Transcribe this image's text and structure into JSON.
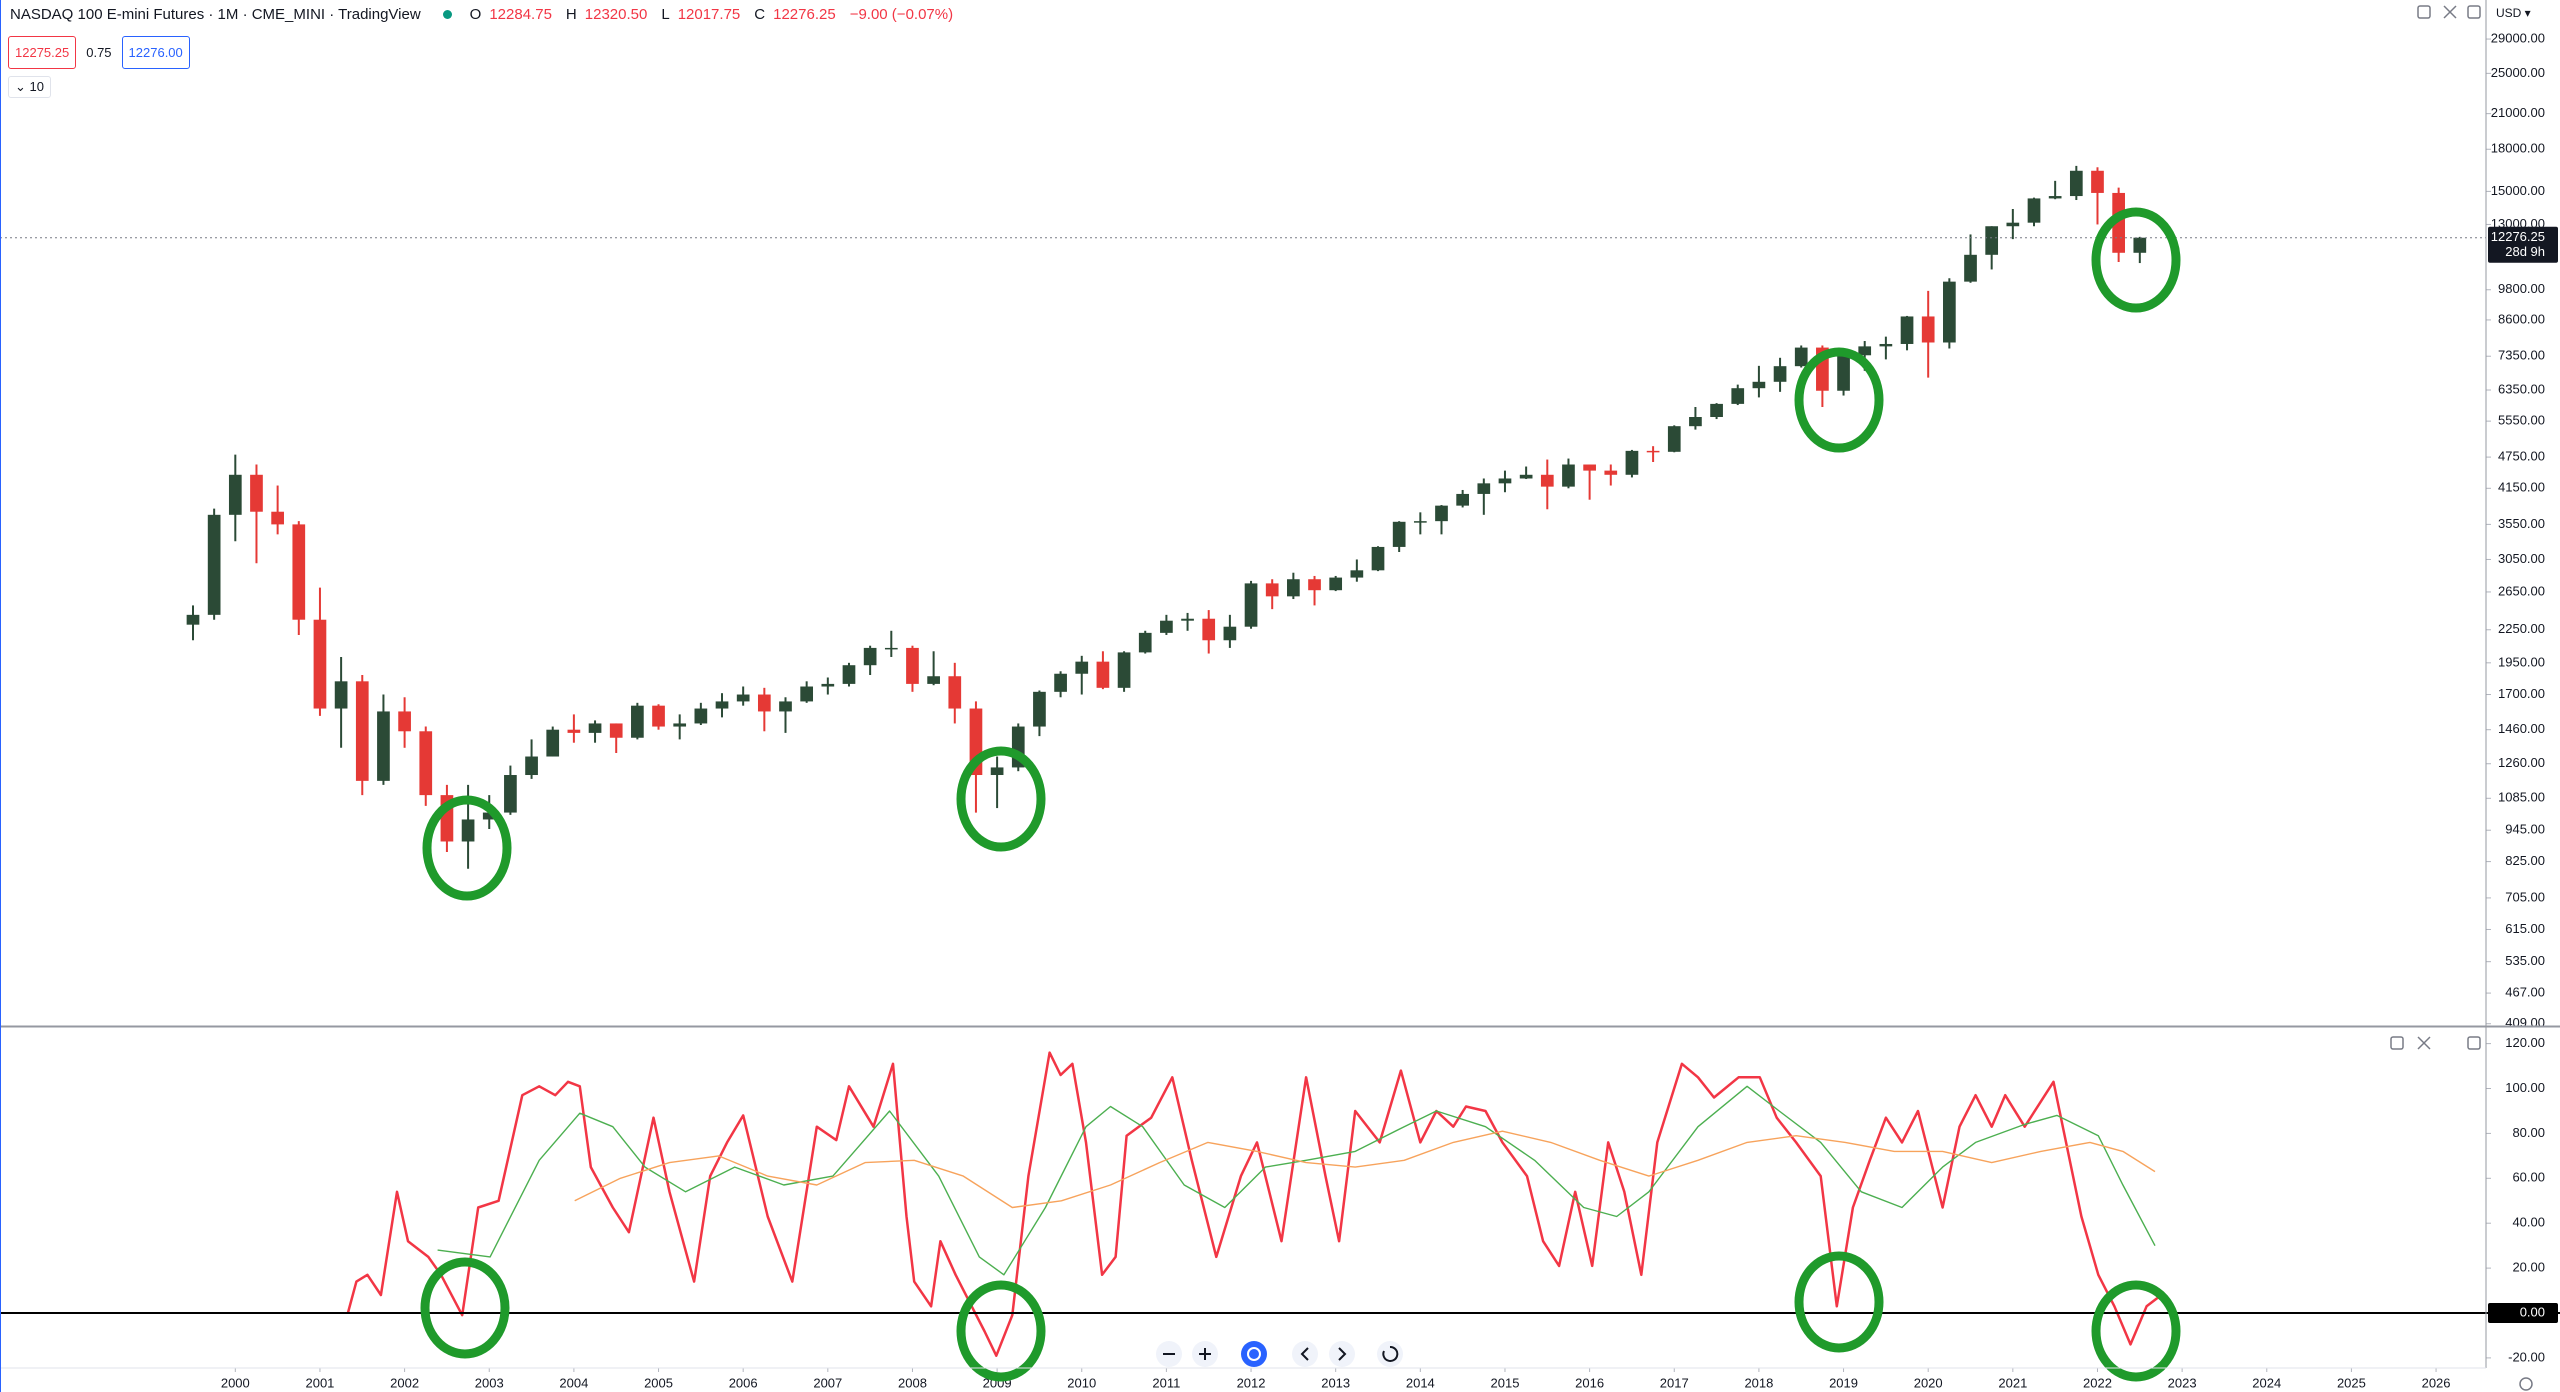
{
  "header": {
    "title": "NASDAQ 100 E-mini Futures · 1M · CME_MINI · TradingView",
    "ohlc": [
      [
        "O",
        "12284.75"
      ],
      [
        "H",
        "12320.50"
      ],
      [
        "L",
        "12017.75"
      ],
      [
        "C",
        "12276.25"
      ]
    ],
    "change": "−9.00 (−0.07%)",
    "bid": "12275.25",
    "spread": "0.75",
    "ask": "12276.00",
    "indicators": "10",
    "currency": "USD"
  },
  "chart_data": [
    {
      "type": "candlestick",
      "log": true,
      "up_color": "#2b4a36",
      "down_color": "#e53935",
      "xlim": [
        1997.22,
        2026.59
      ],
      "ylim": [
        405,
        34340
      ],
      "yticks": [
        {
          "value": 29000,
          "label": "29000.00"
        },
        {
          "value": 25000,
          "label": "25000.00"
        },
        {
          "value": 21000,
          "label": "21000.00"
        },
        {
          "value": 18000,
          "label": "18000.00"
        },
        {
          "value": 15000,
          "label": "15000.00"
        },
        {
          "value": 13000,
          "label": "13000.00"
        },
        {
          "value": 9800,
          "label": "9800.00"
        },
        {
          "value": 8600,
          "label": "8600.00"
        },
        {
          "value": 7350,
          "label": "7350.00"
        },
        {
          "value": 6350,
          "label": "6350.00"
        },
        {
          "value": 5550,
          "label": "5550.00"
        },
        {
          "value": 4750,
          "label": "4750.00"
        },
        {
          "value": 4150,
          "label": "4150.00"
        },
        {
          "value": 3550,
          "label": "3550.00"
        },
        {
          "value": 3050,
          "label": "3050.00"
        },
        {
          "value": 2650,
          "label": "2650.00"
        },
        {
          "value": 2250,
          "label": "2250.00"
        },
        {
          "value": 1950,
          "label": "1950.00"
        },
        {
          "value": 1700,
          "label": "1700.00"
        },
        {
          "value": 1460,
          "label": "1460.00"
        },
        {
          "value": 1260,
          "label": "1260.00"
        },
        {
          "value": 1085,
          "label": "1085.00"
        },
        {
          "value": 945,
          "label": "945.00"
        },
        {
          "value": 825,
          "label": "825.00"
        },
        {
          "value": 705,
          "label": "705.00"
        },
        {
          "value": 615,
          "label": "615.00"
        },
        {
          "value": 535,
          "label": "535.00"
        },
        {
          "value": 467,
          "label": "467.00"
        },
        {
          "value": 409,
          "label": "409.00"
        }
      ],
      "last_price": 12276.25,
      "countdown": "28d 9h",
      "x": [
        1999.5,
        1999.75,
        2000,
        2000.25,
        2000.5,
        2000.75,
        2001,
        2001.25,
        2001.5,
        2001.75,
        2002,
        2002.25,
        2002.5,
        2002.75,
        2003,
        2003.25,
        2003.5,
        2003.75,
        2004,
        2004.25,
        2004.5,
        2004.75,
        2005,
        2005.25,
        2005.5,
        2005.75,
        2006,
        2006.25,
        2006.5,
        2006.75,
        2007,
        2007.25,
        2007.5,
        2007.75,
        2008,
        2008.25,
        2008.5,
        2008.75,
        2009,
        2009.25,
        2009.5,
        2009.75,
        2010,
        2010.25,
        2010.5,
        2010.75,
        2011,
        2011.25,
        2011.5,
        2011.75,
        2012,
        2012.25,
        2012.5,
        2012.75,
        2013,
        2013.25,
        2013.5,
        2013.75,
        2014,
        2014.25,
        2014.5,
        2014.75,
        2015,
        2015.25,
        2015.5,
        2015.75,
        2016,
        2016.25,
        2016.5,
        2016.75,
        2017,
        2017.25,
        2017.5,
        2017.75,
        2018,
        2018.25,
        2018.5,
        2018.75,
        2019,
        2019.25,
        2019.5,
        2019.75,
        2020,
        2020.25,
        2020.5,
        2020.75,
        2021,
        2021.25,
        2021.5,
        2021.75,
        2022,
        2022.25,
        2022.5
      ],
      "open": [
        2300,
        2400,
        3700,
        4400,
        3750,
        3550,
        2350,
        1600,
        1800,
        1170,
        1580,
        1450,
        1100,
        900,
        990,
        1020,
        1200,
        1300,
        1460,
        1440,
        1500,
        1410,
        1620,
        1480,
        1500,
        1600,
        1650,
        1700,
        1580,
        1650,
        1760,
        1780,
        1930,
        2080,
        2080,
        1780,
        1840,
        1600,
        1200,
        1240,
        1480,
        1720,
        1860,
        1960,
        1750,
        2040,
        2220,
        2340,
        2360,
        2150,
        2280,
        2750,
        2600,
        2800,
        2670,
        2820,
        2910,
        3220,
        3590,
        3600,
        3850,
        4050,
        4240,
        4330,
        4400,
        4180,
        4600,
        4480,
        4400,
        4880,
        4860,
        5430,
        5650,
        5980,
        6400,
        6580,
        7040,
        7630,
        6330,
        7380,
        7670,
        7750,
        8730,
        7800,
        10150,
        11400,
        12900,
        13100,
        14550,
        14700,
        16400,
        14900,
        11500
      ],
      "high": [
        2500,
        3800,
        4800,
        4600,
        4200,
        3600,
        2700,
        2000,
        1850,
        1700,
        1680,
        1480,
        1150,
        1150,
        1100,
        1250,
        1400,
        1480,
        1560,
        1520,
        1500,
        1640,
        1630,
        1560,
        1640,
        1710,
        1760,
        1750,
        1680,
        1800,
        1830,
        1950,
        2100,
        2240,
        2100,
        2050,
        1950,
        1650,
        1300,
        1500,
        1730,
        1880,
        2010,
        2050,
        2050,
        2240,
        2400,
        2420,
        2450,
        2400,
        2780,
        2800,
        2880,
        2840,
        2840,
        3050,
        3230,
        3600,
        3740,
        3860,
        4120,
        4330,
        4480,
        4560,
        4700,
        4720,
        4600,
        4600,
        4900,
        4980,
        5450,
        5900,
        6000,
        6500,
        7050,
        7300,
        7700,
        7700,
        7400,
        7850,
        8000,
        8750,
        9750,
        10300,
        12450,
        12900,
        13900,
        14600,
        15700,
        16750,
        16650,
        15250,
        12320.5
      ],
      "low": [
        2150,
        2350,
        3300,
        3000,
        3400,
        2200,
        1550,
        1350,
        1100,
        1150,
        1350,
        1050,
        860,
        800,
        950,
        1010,
        1180,
        1300,
        1380,
        1380,
        1320,
        1400,
        1460,
        1400,
        1490,
        1540,
        1620,
        1450,
        1440,
        1640,
        1700,
        1760,
        1850,
        2000,
        1720,
        1770,
        1500,
        1020,
        1040,
        1220,
        1420,
        1680,
        1700,
        1740,
        1720,
        2030,
        2200,
        2240,
        2030,
        2080,
        2260,
        2460,
        2570,
        2500,
        2660,
        2770,
        2900,
        3150,
        3400,
        3400,
        3820,
        3700,
        4080,
        4320,
        3790,
        4150,
        3950,
        4200,
        4350,
        4650,
        4850,
        5350,
        5600,
        5950,
        6150,
        6300,
        7000,
        5900,
        6200,
        6900,
        7250,
        7540,
        6700,
        7600,
        10100,
        10700,
        12200,
        12900,
        14500,
        14450,
        13000,
        11050,
        11000
      ],
      "close": [
        2400,
        3700,
        4400,
        3750,
        3550,
        2350,
        1600,
        1800,
        1170,
        1580,
        1450,
        1100,
        900,
        990,
        1020,
        1200,
        1300,
        1460,
        1440,
        1500,
        1410,
        1620,
        1480,
        1500,
        1600,
        1650,
        1700,
        1580,
        1650,
        1760,
        1780,
        1930,
        2080,
        2080,
        1780,
        1840,
        1600,
        1200,
        1240,
        1480,
        1720,
        1860,
        1960,
        1750,
        2040,
        2220,
        2340,
        2360,
        2150,
        2280,
        2750,
        2600,
        2800,
        2670,
        2820,
        2910,
        3220,
        3590,
        3600,
        3850,
        4050,
        4240,
        4330,
        4400,
        4180,
        4600,
        4480,
        4400,
        4880,
        4860,
        5430,
        5650,
        5980,
        6400,
        6580,
        7040,
        7630,
        6330,
        7380,
        7670,
        7750,
        8730,
        7800,
        10150,
        11400,
        12900,
        13100,
        14550,
        14700,
        16400,
        14900,
        11500,
        12276.25
      ]
    },
    {
      "type": "line",
      "xlim": [
        1997.22,
        2026.59
      ],
      "ylim": [
        -24.5,
        127.4
      ],
      "xticks": [
        2000,
        2001,
        2002,
        2003,
        2004,
        2005,
        2006,
        2007,
        2008,
        2009,
        2010,
        2011,
        2012,
        2013,
        2014,
        2015,
        2016,
        2017,
        2018,
        2019,
        2020,
        2021,
        2022,
        2023,
        2024,
        2025,
        2026
      ],
      "yticks": [
        {
          "value": 120,
          "label": "120.00"
        },
        {
          "value": 100,
          "label": "100.00"
        },
        {
          "value": 80,
          "label": "80.00"
        },
        {
          "value": 60,
          "label": "60.00"
        },
        {
          "value": 40,
          "label": "40.00"
        },
        {
          "value": 20,
          "label": "20.00"
        },
        {
          "value": -20,
          "label": "-20.00"
        }
      ],
      "hline": {
        "value": 0,
        "label": "0.00",
        "color": "#000000"
      },
      "series": [
        {
          "color": "#f23645",
          "width": 2.5,
          "x": [
            2001.33,
            2001.43,
            2001.56,
            2001.72,
            2001.91,
            2002.04,
            2002.28,
            2002.43,
            2002.68,
            2002.87,
            2003.11,
            2003.39,
            2003.59,
            2003.78,
            2003.93,
            2004.07,
            2004.2,
            2004.46,
            2004.65,
            2004.94,
            2005.13,
            2005.42,
            2005.61,
            2005.81,
            2006,
            2006.29,
            2006.58,
            2006.87,
            2007.1,
            2007.25,
            2007.54,
            2007.77,
            2007.93,
            2008.02,
            2008.22,
            2008.33,
            2008.51,
            2008.7,
            2008.85,
            2008.99,
            2009.18,
            2009.37,
            2009.62,
            2009.75,
            2009.89,
            2010.05,
            2010.24,
            2010.4,
            2010.53,
            2010.82,
            2011.07,
            2011.3,
            2011.59,
            2011.88,
            2012.07,
            2012.36,
            2012.65,
            2012.88,
            2013.04,
            2013.23,
            2013.52,
            2013.77,
            2014,
            2014.19,
            2014.39,
            2014.54,
            2014.77,
            2014.97,
            2015.26,
            2015.45,
            2015.64,
            2015.83,
            2016.03,
            2016.22,
            2016.41,
            2016.61,
            2016.8,
            2017.09,
            2017.28,
            2017.47,
            2017.76,
            2018.01,
            2018.21,
            2018.44,
            2018.73,
            2018.92,
            2019.11,
            2019.31,
            2019.5,
            2019.69,
            2019.88,
            2020.17,
            2020.37,
            2020.56,
            2020.75,
            2020.91,
            2021.14,
            2021.48,
            2021.81,
            2022.01,
            2022.2,
            2022.39,
            2022.58,
            2022.72
          ],
          "values": [
            0,
            14,
            17,
            8,
            54,
            32,
            25,
            17,
            -1,
            47,
            50,
            97,
            101,
            97,
            103,
            101,
            65,
            47,
            36,
            87,
            54,
            14,
            61,
            76,
            88,
            43,
            14,
            83,
            77,
            101,
            83,
            111,
            43,
            14,
            3,
            32,
            17,
            3,
            -8,
            -19,
            -1,
            61,
            116,
            106,
            111,
            76,
            17,
            25,
            79,
            87,
            105,
            68,
            25,
            61,
            76,
            32,
            105,
            61,
            32,
            90,
            76,
            108,
            76,
            90,
            83,
            92,
            90,
            76,
            61,
            32,
            21,
            54,
            21,
            76,
            54,
            17,
            76,
            111,
            105,
            96,
            105,
            105,
            87,
            76,
            61,
            3,
            47,
            68,
            87,
            76,
            90,
            47,
            83,
            97,
            83,
            97,
            83,
            103,
            43,
            17,
            3,
            -14,
            3,
            7
          ]
        },
        {
          "color": "#4caf50",
          "width": 1.4,
          "x": [
            2002.39,
            2003.01,
            2003.59,
            2004.07,
            2004.46,
            2004.84,
            2005.32,
            2005.9,
            2006.48,
            2007.06,
            2007.73,
            2008.31,
            2008.79,
            2009.08,
            2009.57,
            2010.05,
            2010.34,
            2010.72,
            2011.21,
            2011.69,
            2012.17,
            2012.65,
            2013.23,
            2013.81,
            2014.19,
            2014.77,
            2015.35,
            2015.93,
            2016.32,
            2016.7,
            2017.28,
            2017.86,
            2018.24,
            2018.73,
            2019.21,
            2019.69,
            2020.17,
            2020.56,
            2021.14,
            2021.52,
            2022.01,
            2022.3,
            2022.68
          ],
          "values": [
            28,
            25,
            68,
            89,
            83,
            65,
            54,
            65,
            57,
            61,
            90,
            61,
            25,
            17,
            47,
            83,
            92,
            83,
            57,
            47,
            65,
            68,
            72,
            83,
            90,
            83,
            68,
            47,
            43,
            54,
            83,
            101,
            90,
            76,
            54,
            47,
            65,
            76,
            84,
            88,
            79,
            57,
            30
          ]
        },
        {
          "color": "#f7a35c",
          "width": 1.4,
          "x": [
            2004.01,
            2004.55,
            2005.13,
            2005.71,
            2006.29,
            2006.87,
            2007.44,
            2008.02,
            2008.6,
            2009.18,
            2009.76,
            2010.34,
            2010.92,
            2011.49,
            2012.07,
            2012.65,
            2013.23,
            2013.81,
            2014.39,
            2014.97,
            2015.54,
            2016.12,
            2016.7,
            2017.28,
            2017.86,
            2018.44,
            2019.02,
            2019.6,
            2020.17,
            2020.75,
            2021.33,
            2021.91,
            2022.3,
            2022.68
          ],
          "values": [
            50,
            60,
            67,
            70,
            61,
            57,
            67,
            68,
            61,
            47,
            50,
            57,
            67,
            76,
            72,
            67,
            65,
            68,
            76,
            81,
            76,
            68,
            61,
            68,
            76,
            79,
            76,
            72,
            72,
            67,
            72,
            76,
            72,
            63
          ]
        }
      ]
    }
  ]
}
